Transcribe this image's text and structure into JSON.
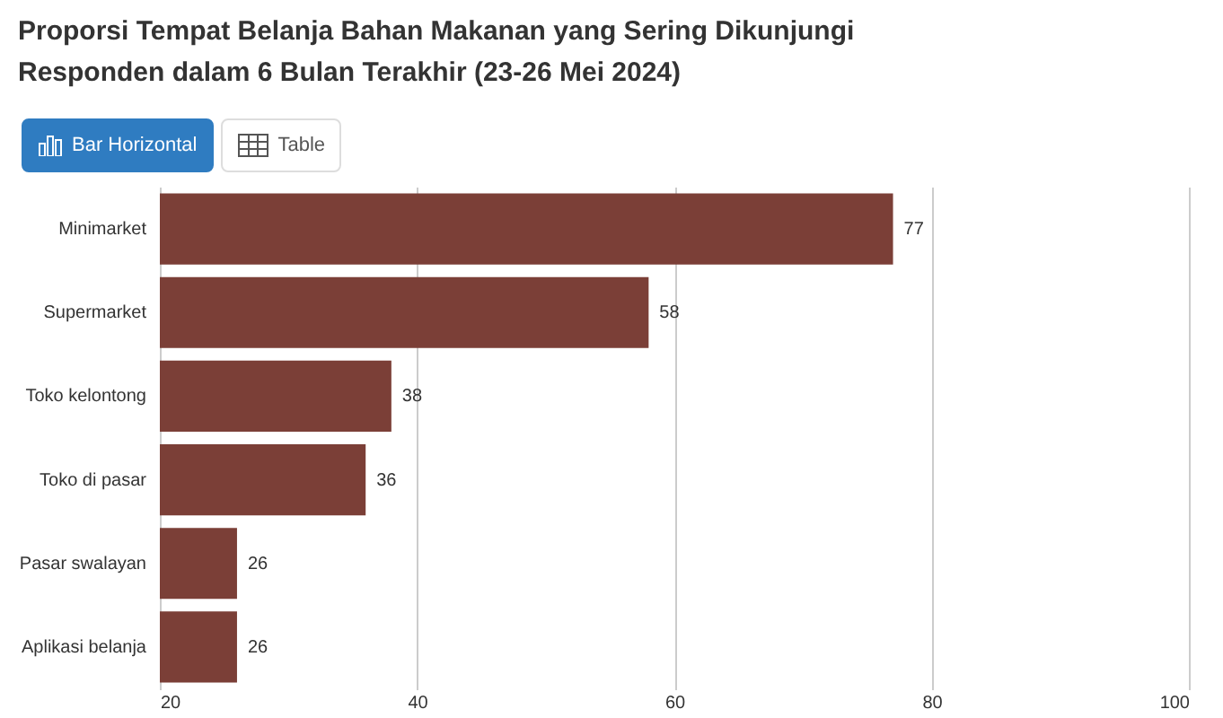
{
  "chart_data": {
    "type": "bar",
    "orientation": "horizontal",
    "title": "Proporsi Tempat Belanja Bahan Makanan yang Sering Dikunjungi Responden dalam 6 Bulan Terakhir (23-26 Mei 2024)",
    "annotations": [
      "Bar Horizontal",
      "Table"
    ],
    "categories": [
      "Minimarket",
      "Supermarket",
      "Toko kelontong",
      "Toko di pasar",
      "Pasar swalayan",
      "Aplikasi belanja"
    ],
    "values": [
      77,
      58,
      38,
      36,
      26,
      26
    ],
    "color": "#7b3f37",
    "xlim": [
      20,
      100
    ],
    "xticks": [
      20,
      40,
      60,
      80,
      100
    ],
    "grid": "x",
    "data_labels": true
  }
}
